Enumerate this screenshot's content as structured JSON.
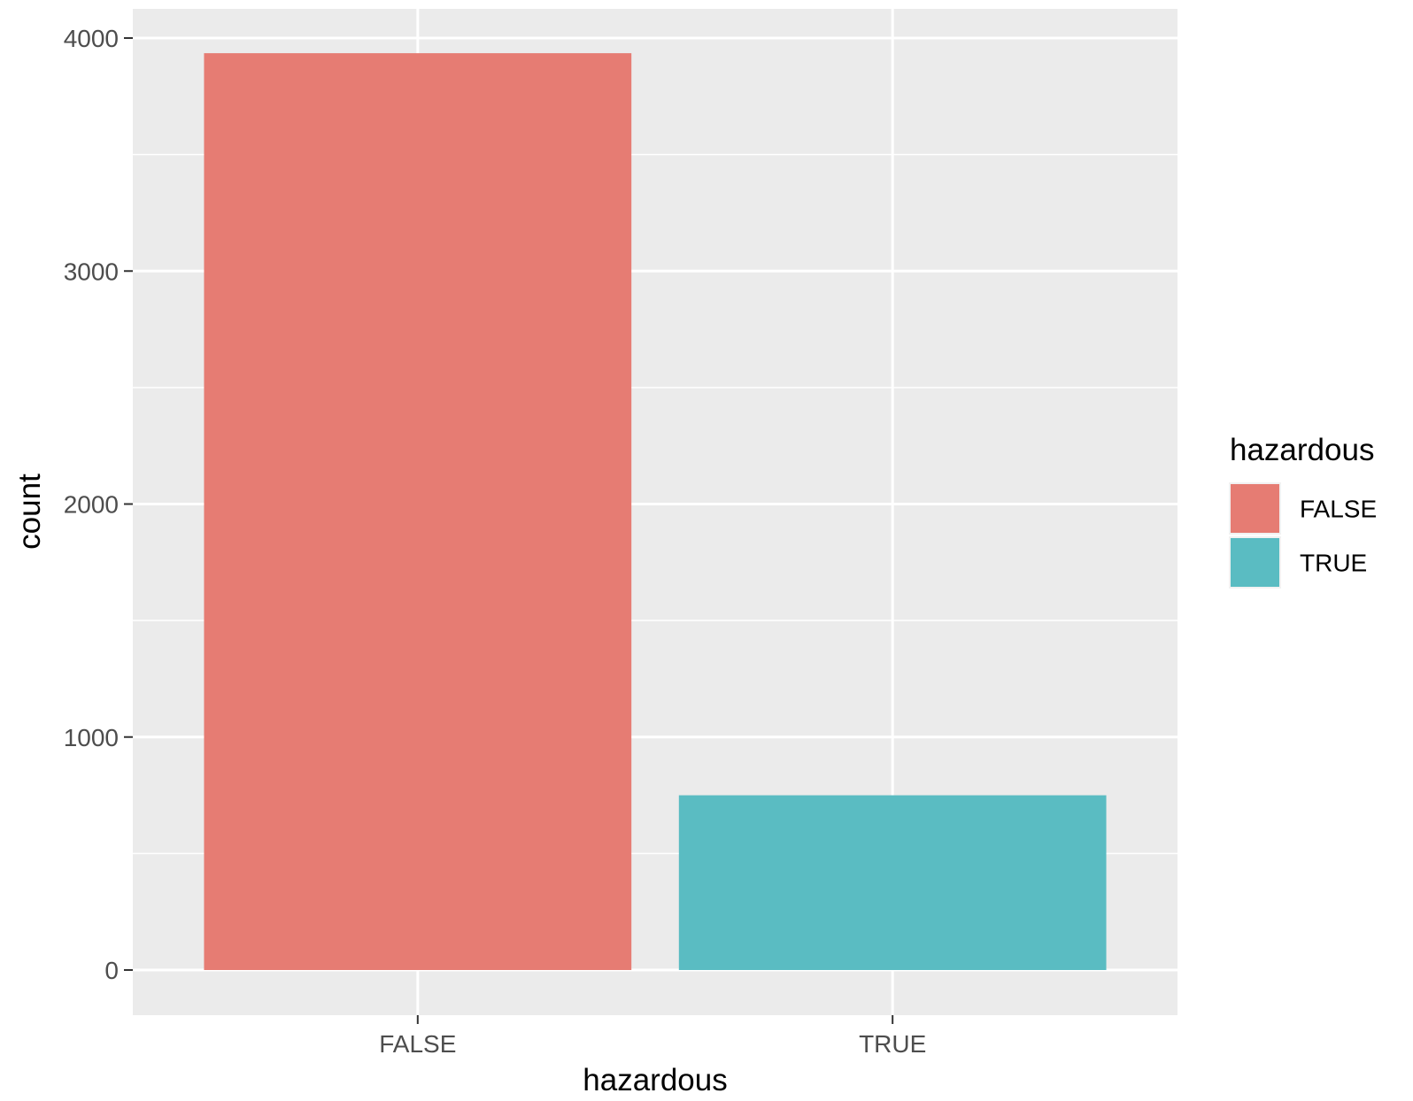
{
  "chart_data": {
    "type": "bar",
    "categories": [
      "FALSE",
      "TRUE"
    ],
    "values": [
      3935,
      750
    ],
    "colors": [
      "#E67C73",
      "#5ABCC2"
    ],
    "xlabel": "hazardous",
    "ylabel": "count",
    "ylim": [
      0,
      4100
    ],
    "yticks": [
      0,
      1000,
      2000,
      3000,
      4000
    ],
    "ytick_labels": [
      "0",
      "1000",
      "2000",
      "3000",
      "4000"
    ],
    "grid": true,
    "panel_background": "#EBEBEB",
    "legend": {
      "title": "hazardous",
      "position": "right",
      "entries": [
        "FALSE",
        "TRUE"
      ]
    }
  }
}
